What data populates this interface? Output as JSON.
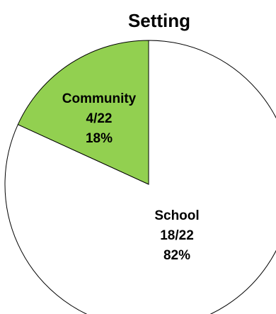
{
  "chart_data": {
    "type": "pie",
    "title": "Setting",
    "slices": [
      {
        "label": "School",
        "fraction_text": "18/22",
        "percent_text": "82%",
        "value": 18,
        "color": "#ffffff"
      },
      {
        "label": "Community",
        "fraction_text": "4/22",
        "percent_text": "18%",
        "value": 4,
        "color": "#92d050"
      }
    ],
    "total": 22,
    "legend": "none"
  }
}
